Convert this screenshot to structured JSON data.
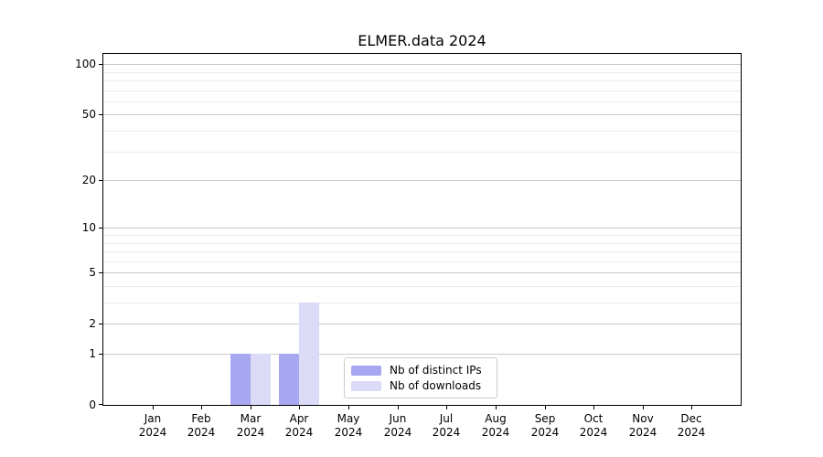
{
  "chart_data": {
    "type": "bar",
    "title": "ELMER.data 2024",
    "categories": [
      "Jan 2024",
      "Feb 2024",
      "Mar 2024",
      "Apr 2024",
      "May 2024",
      "Jun 2024",
      "Jul 2024",
      "Aug 2024",
      "Sep 2024",
      "Oct 2024",
      "Nov 2024",
      "Dec 2024"
    ],
    "series": [
      {
        "name": "Nb of distinct IPs",
        "color": "#a8a8f2",
        "values": [
          0,
          0,
          1,
          1,
          0,
          0,
          0,
          0,
          0,
          0,
          0,
          0
        ]
      },
      {
        "name": "Nb of downloads",
        "color": "#dbdbf8",
        "values": [
          0,
          0,
          1,
          3,
          0,
          0,
          0,
          0,
          0,
          0,
          0,
          0
        ]
      }
    ],
    "xlabel": "",
    "ylabel": "",
    "yscale": "log1p",
    "ylim": [
      0,
      115
    ],
    "y_major_ticks": [
      0,
      1,
      2,
      5,
      10,
      20,
      50,
      100
    ],
    "y_minor_gridlines": [
      3,
      4,
      6,
      7,
      8,
      9,
      30,
      40,
      60,
      70,
      80,
      90
    ],
    "grid": "horizontal",
    "legend_position": "lower center",
    "colors": {
      "major_grid": "#c9c9c9",
      "minor_grid": "#ececec",
      "spine": "#000000",
      "text": "#000000"
    }
  }
}
